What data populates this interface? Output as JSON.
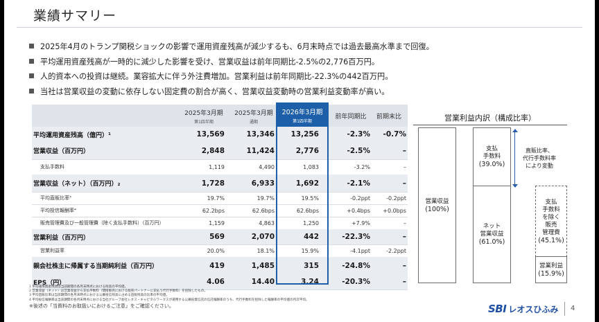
{
  "title": "業績サマリー",
  "bullets": [
    "2025年4月のトランプ関税ショックの影響で運用資産残高が減少するも、6月末時点では過去最高水準まで回復。",
    "平均運用資産残高が一時的に減少した影響を受け、営業収益は前年同期比-2.5%の2,776百万円。",
    "人的資本への投資は継続。業容拡大に伴う外注費増加。営業利益は前年同期比-22.3%の442百万円。",
    "当社は営業収益の変動に依存しない固定費の割合が高く、営業収益変動時の営業利益変動率が高い。"
  ],
  "table": {
    "headers": [
      {
        "year": "2025年3月期",
        "sub": "第1四半期"
      },
      {
        "year": "2025年3月期",
        "sub": "通期"
      },
      {
        "year": "2026年3月期",
        "sub": "第1四半期"
      },
      {
        "year": "前年同期比",
        "sub": ""
      },
      {
        "year": "前期末比",
        "sub": ""
      }
    ],
    "rows": [
      {
        "label": "平均運用資産残高（億円）¹",
        "values": [
          "13,569",
          "13,346",
          "13,256",
          "-2.3%",
          "-0.7%"
        ],
        "type": "major"
      },
      {
        "label": "営業収益（百万円）",
        "values": [
          "2,848",
          "11,424",
          "2,776",
          "-2.5%",
          "–"
        ],
        "type": "major"
      },
      {
        "label": "支払手数料",
        "values": [
          "1,119",
          "4,490",
          "1,083",
          "-3.2%",
          "–"
        ],
        "type": "minor"
      },
      {
        "label": "営業収益（ネット）（百万円）₂",
        "values": [
          "1,728",
          "6,933",
          "1,692",
          "-2.1%",
          "–"
        ],
        "type": "major"
      },
      {
        "label": "平均直販比率³",
        "values": [
          "19.7%",
          "19.7%",
          "19.5%",
          "-0.2ppt",
          "-0.2ppt"
        ],
        "type": "minor"
      },
      {
        "label": "平均投信報酬率⁴",
        "values": [
          "62.2bps",
          "62.6bps",
          "62.6bps",
          "+0.4bps",
          "+0.0bps"
        ],
        "type": "minor"
      },
      {
        "label": "販売管理費及び一般管理費（除く支払手数料）（百万円）",
        "values": [
          "1,159",
          "4,863",
          "1,250",
          "+7.9%",
          "–"
        ],
        "type": "minor"
      },
      {
        "label": "営業利益（百万円）",
        "values": [
          "569",
          "2,070",
          "442",
          "-22.3%",
          "–"
        ],
        "type": "major"
      },
      {
        "label": "営業利益率",
        "values": [
          "20.0%",
          "18.1%",
          "15.9%",
          "-4.1ppt",
          "-2.2ppt"
        ],
        "type": "minor"
      },
      {
        "label": "親会社株主に帰属する当期純利益（百万円）",
        "values": [
          "419",
          "1,485",
          "315",
          "-24.8%",
          "–"
        ],
        "type": "major"
      },
      {
        "label": "EPS（円）",
        "values": [
          "4.06",
          "14.40",
          "3.24",
          "-20.3%",
          "–"
        ],
        "type": "major"
      }
    ]
  },
  "notes": [
    "1 平均運用資産残高は当該期間の各月末時点における残高の平均値。",
    "2 営業収益（ネット）は営業収益から支払手数料（間接販売における販売パートナーに支払う代行手数料）を控除したもの。",
    "3 平均直販比率は当該期間の各月末時点における公募投信残高に占める直販残高の比率の平均値。",
    "4 平均投信報酬率は当該期間の各月末時点における当社グループ会社レオス・キャピタルワークスが運用する公募投資信託の信託報酬率のうち、代行手数料を控除した報酬率の平均値の月次平均。",
    "※後述の「当資料のお取扱いにおけるご注意」をご確認ください。"
  ],
  "breakdown": {
    "title": "営業利益内訳（構成比率）",
    "revenue": {
      "label": "営業収益",
      "pct": "(100%)"
    },
    "fees": {
      "label": "支払\n手数料",
      "pct": "(39.0%)"
    },
    "net": {
      "label": "ネット\n営業収益",
      "pct": "(61.0%)"
    },
    "sga": {
      "label": "支払\n手数料\nを除く\n販売\n管理費",
      "pct": "(45.1%)"
    },
    "profit": {
      "label": "営業利益",
      "pct": "(15.9%)"
    },
    "arrow_text": "直販比率、\n代行手数料率\nにより変動"
  },
  "logo": {
    "sbi": "SBI",
    "name": "レオスひふみ"
  },
  "page_number": "4"
}
